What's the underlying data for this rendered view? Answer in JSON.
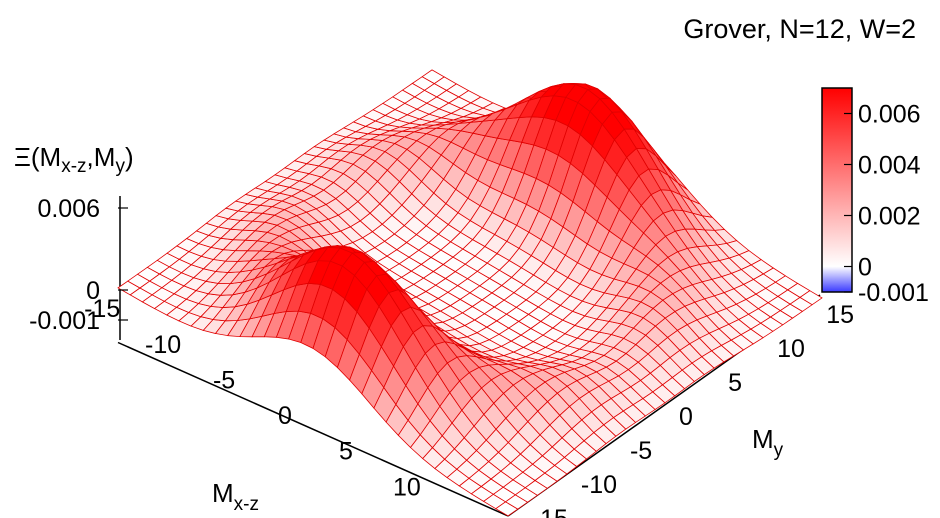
{
  "chart_data": {
    "type": "surface",
    "title": "Grover, N=12, W=2",
    "zlabel": {
      "prefix": "Ξ(M",
      "sub1": "x-z",
      "mid": ",M",
      "sub2": "y",
      "suffix": ")"
    },
    "xlabel": {
      "main": "M",
      "sub": "x-z"
    },
    "ylabel": {
      "main": "M",
      "sub": "y"
    },
    "xrange": [
      -16,
      16
    ],
    "yrange": [
      -16,
      16
    ],
    "zrange": [
      -0.001,
      0.0065
    ],
    "x_ticks": [
      "-15",
      "-10",
      "-5",
      "0",
      "5",
      "10"
    ],
    "y_ticks": [
      "15",
      "10",
      "5",
      "0",
      "-5",
      "-10",
      "-15"
    ],
    "z_ticks": [
      "0.006",
      "0",
      "-0.001"
    ],
    "colorbar": {
      "range": [
        -0.001,
        0.007
      ],
      "ticks": [
        "0.006",
        "0.004",
        "0.002",
        "0",
        "-0.001"
      ],
      "colors": [
        "#3a3aff",
        "#ffffff",
        "#ff0000"
      ]
    },
    "peaks": [
      {
        "x": 0,
        "y": -12,
        "height": 0.0062
      },
      {
        "x": 0,
        "y": 12,
        "height": 0.0062
      }
    ],
    "troughs": [
      {
        "x": -12,
        "y": 0,
        "depth": -0.001
      },
      {
        "x": 12,
        "y": 0,
        "depth": -0.001
      }
    ],
    "grid_lines": 33,
    "mesh_color": "#e00000"
  }
}
